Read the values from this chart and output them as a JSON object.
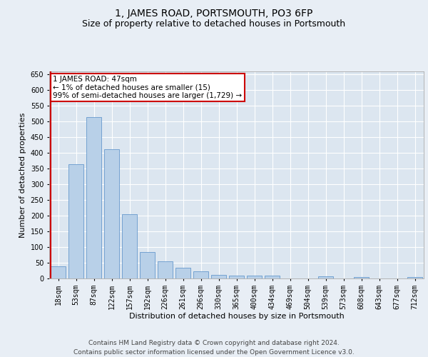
{
  "title": "1, JAMES ROAD, PORTSMOUTH, PO3 6FP",
  "subtitle": "Size of property relative to detached houses in Portsmouth",
  "xlabel": "Distribution of detached houses by size in Portsmouth",
  "ylabel": "Number of detached properties",
  "categories": [
    "18sqm",
    "53sqm",
    "87sqm",
    "122sqm",
    "157sqm",
    "192sqm",
    "226sqm",
    "261sqm",
    "296sqm",
    "330sqm",
    "365sqm",
    "400sqm",
    "434sqm",
    "469sqm",
    "504sqm",
    "539sqm",
    "573sqm",
    "608sqm",
    "643sqm",
    "677sqm",
    "712sqm"
  ],
  "values": [
    38,
    365,
    515,
    413,
    205,
    85,
    55,
    35,
    22,
    12,
    8,
    10,
    8,
    0,
    0,
    6,
    0,
    5,
    0,
    0,
    5
  ],
  "bar_color": "#b8d0e8",
  "bar_edge_color": "#6699cc",
  "highlight_line_color": "#cc0000",
  "annotation_text": "1 JAMES ROAD: 47sqm\n← 1% of detached houses are smaller (15)\n99% of semi-detached houses are larger (1,729) →",
  "annotation_box_color": "#ffffff",
  "annotation_box_edge_color": "#cc0000",
  "annotation_fontsize": 7.5,
  "ylim": [
    0,
    660
  ],
  "yticks": [
    0,
    50,
    100,
    150,
    200,
    250,
    300,
    350,
    400,
    450,
    500,
    550,
    600,
    650
  ],
  "fig_bg_color": "#e8eef5",
  "plot_bg_color": "#dce6f0",
  "footer_line1": "Contains HM Land Registry data © Crown copyright and database right 2024.",
  "footer_line2": "Contains public sector information licensed under the Open Government Licence v3.0.",
  "title_fontsize": 10,
  "subtitle_fontsize": 9,
  "xlabel_fontsize": 8,
  "ylabel_fontsize": 8,
  "tick_fontsize": 7,
  "footer_fontsize": 6.5
}
